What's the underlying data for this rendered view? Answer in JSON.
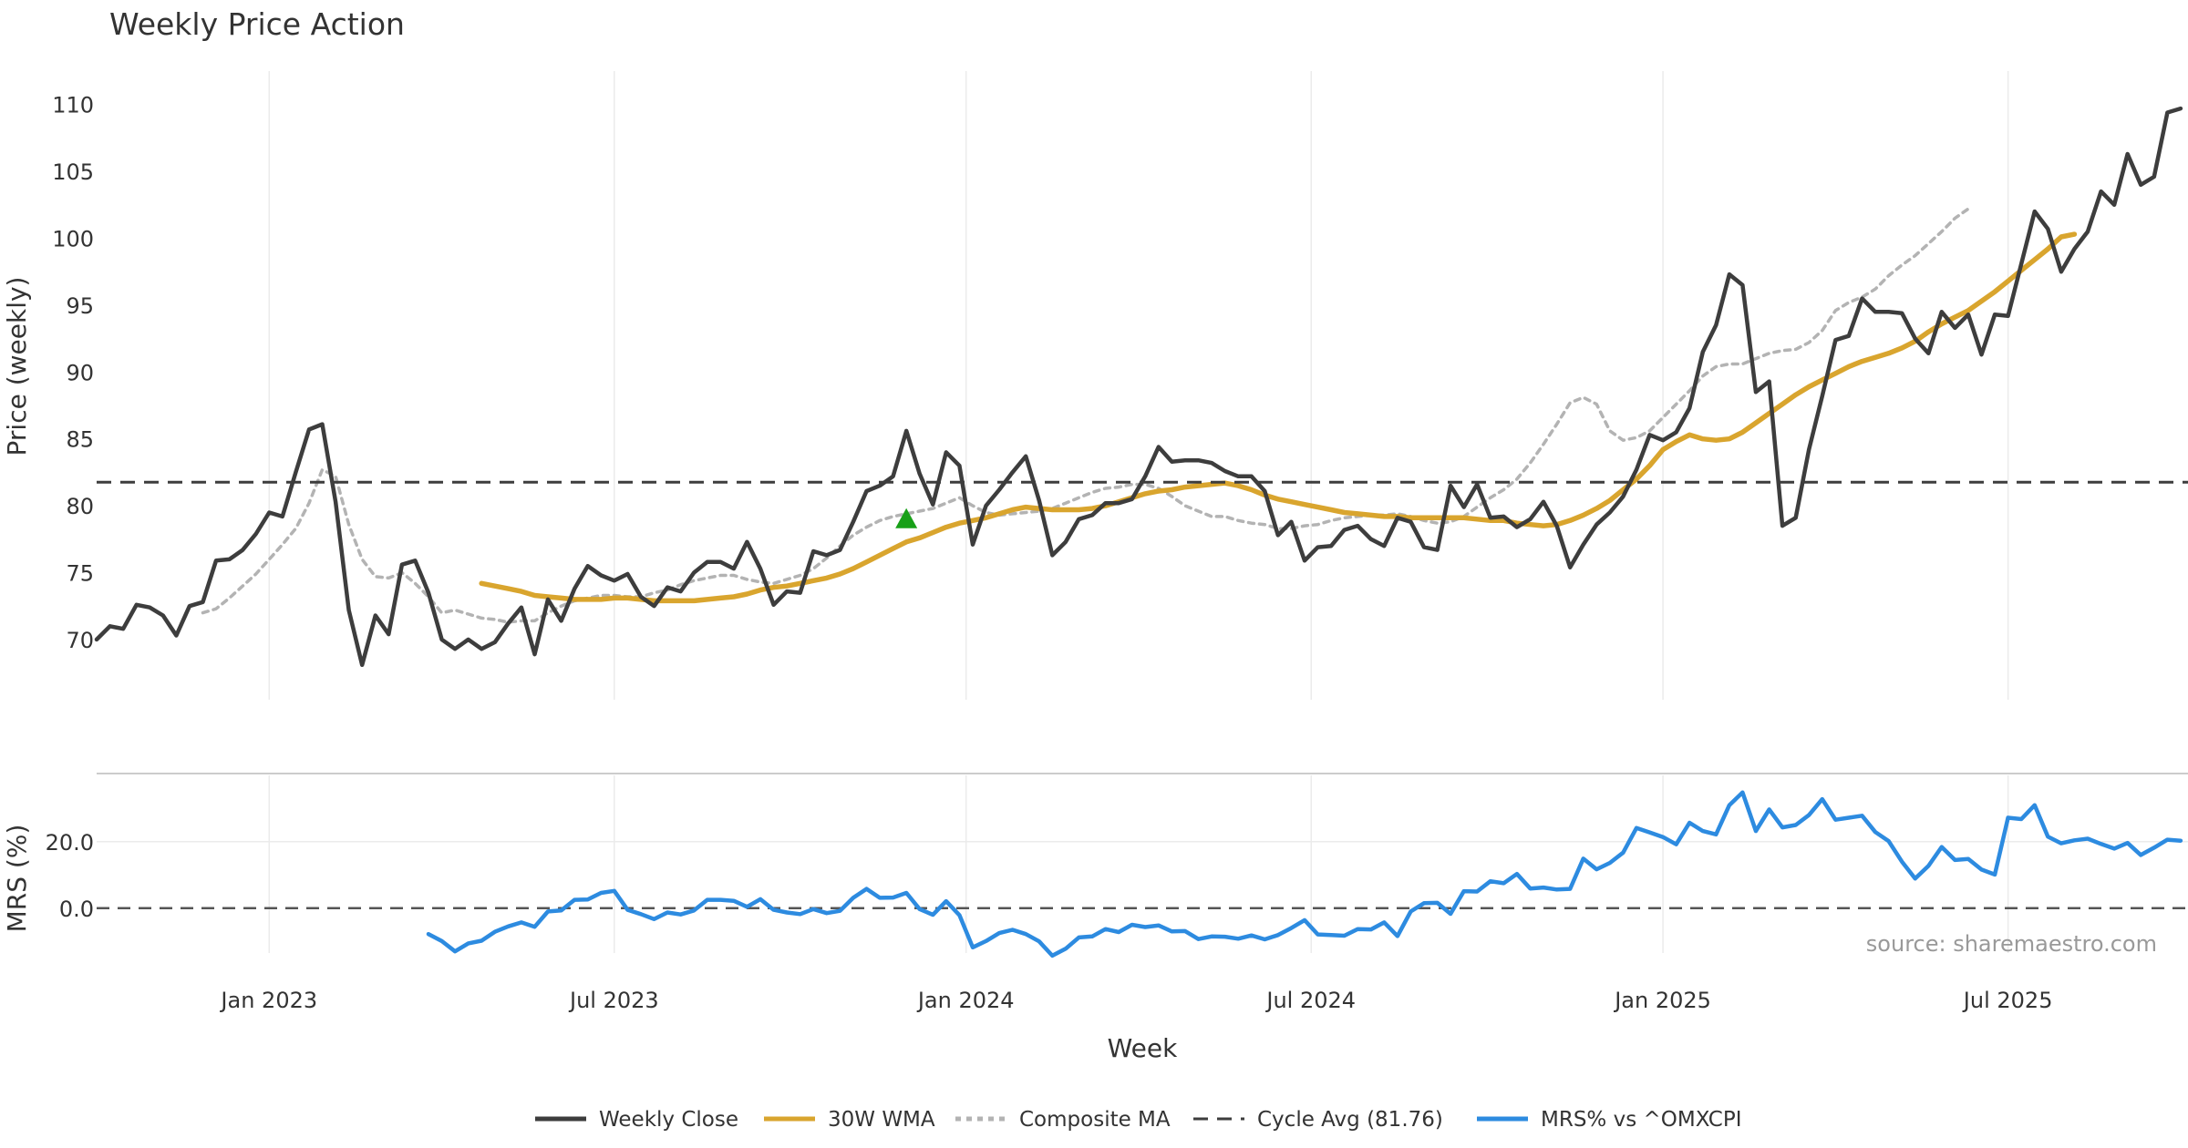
{
  "chart_data": {
    "type": "line",
    "title": "Weekly Price Action",
    "xlabel": "Week",
    "source": "source: sharemaestro.com",
    "x_ticks": [
      "Jan 2023",
      "Jul 2023",
      "Jan 2024",
      "Jul 2024",
      "Jan 2025",
      "Jul 2025"
    ],
    "x_tick_weeks": [
      13,
      39,
      65.5,
      91.5,
      118,
      144
    ],
    "price_panel": {
      "ylabel": "Price (weekly)",
      "ylim": [
        65.5,
        112.5
      ],
      "y_ticks": [
        "70",
        "75",
        "80",
        "85",
        "90",
        "95",
        "100",
        "105",
        "110"
      ],
      "cycle_avg": 81.76,
      "buy_signal": {
        "week": 61,
        "value": 79
      },
      "series": [
        {
          "name": "Weekly Close",
          "color": "#3d3d3d",
          "start_week": 0,
          "values": [
            70.0,
            71.0,
            70.8,
            72.6,
            72.4,
            71.8,
            70.3,
            72.5,
            72.8,
            75.9,
            76.0,
            76.7,
            77.9,
            79.5,
            79.2,
            82.5,
            85.7,
            86.1,
            80.3,
            72.2,
            68.1,
            71.8,
            70.4,
            75.6,
            75.9,
            73.5,
            70.0,
            69.3,
            70.0,
            69.3,
            69.8,
            71.2,
            72.4,
            68.9,
            73.0,
            71.4,
            73.8,
            75.5,
            74.8,
            74.4,
            74.9,
            73.2,
            72.5,
            73.9,
            73.6,
            75.0,
            75.8,
            75.8,
            75.3,
            77.3,
            75.3,
            72.6,
            73.6,
            73.5,
            76.6,
            76.3,
            76.7,
            78.8,
            81.1,
            81.5,
            82.2,
            85.6,
            82.4,
            80.1,
            84.0,
            83.0,
            77.1,
            80.0,
            81.2,
            82.5,
            83.7,
            80.4,
            76.3,
            77.3,
            79.0,
            79.3,
            80.2,
            80.2,
            80.5,
            82.2,
            84.4,
            83.3,
            83.4,
            83.4,
            83.2,
            82.6,
            82.2,
            82.2,
            81.1,
            77.8,
            78.8,
            75.9,
            76.9,
            77.0,
            78.2,
            78.5,
            77.5,
            77.0,
            79.1,
            78.8,
            76.9,
            76.7,
            81.5,
            79.9,
            81.6,
            79.1,
            79.2,
            78.4,
            79.0,
            80.3,
            78.5,
            75.4,
            77.1,
            78.6,
            79.5,
            80.7,
            82.7,
            85.3,
            84.9,
            85.5,
            87.3,
            91.5,
            93.5,
            97.3,
            96.5,
            88.5,
            89.3,
            78.5,
            79.1,
            84.2,
            88.2,
            92.4,
            92.7,
            95.5,
            94.5,
            94.5,
            94.4,
            92.5,
            91.4,
            94.5,
            93.3,
            94.3,
            91.3,
            94.3,
            94.2,
            98.1,
            102.0,
            100.7,
            97.5,
            99.2,
            100.5,
            103.5,
            102.5,
            106.3,
            104.0,
            104.6,
            109.4,
            109.7
          ]
        },
        {
          "name": "30W WMA",
          "color": "#d9a52e",
          "start_week": 29,
          "values": [
            74.2,
            74.0,
            73.8,
            73.6,
            73.3,
            73.2,
            73.1,
            73.0,
            73.0,
            73.0,
            73.1,
            73.1,
            73.0,
            72.9,
            72.9,
            72.9,
            72.9,
            73.0,
            73.1,
            73.2,
            73.4,
            73.7,
            73.9,
            74.0,
            74.2,
            74.4,
            74.6,
            74.9,
            75.3,
            75.8,
            76.3,
            76.8,
            77.3,
            77.6,
            78.0,
            78.4,
            78.7,
            78.9,
            79.1,
            79.4,
            79.7,
            79.9,
            79.8,
            79.7,
            79.7,
            79.7,
            79.8,
            80.0,
            80.3,
            80.6,
            80.9,
            81.1,
            81.2,
            81.4,
            81.5,
            81.6,
            81.7,
            81.5,
            81.2,
            80.8,
            80.5,
            80.3,
            80.1,
            79.9,
            79.7,
            79.5,
            79.4,
            79.3,
            79.2,
            79.2,
            79.1,
            79.1,
            79.1,
            79.1,
            79.1,
            79.0,
            78.9,
            78.9,
            78.7,
            78.6,
            78.5,
            78.6,
            78.9,
            79.3,
            79.8,
            80.4,
            81.2,
            82.0,
            83.0,
            84.2,
            84.8,
            85.3,
            85.0,
            84.9,
            85.0,
            85.5,
            86.2,
            86.9,
            87.6,
            88.3,
            88.9,
            89.4,
            89.9,
            90.4,
            90.8,
            91.1,
            91.4,
            91.8,
            92.3,
            93.0,
            93.6,
            94.1,
            94.6,
            95.3,
            96.0,
            96.8,
            97.6,
            98.4,
            99.2,
            100.1,
            100.3
          ]
        },
        {
          "name": "Composite MA",
          "color": "#b3b3b3",
          "start_week": 8,
          "values": [
            72.0,
            72.3,
            73.1,
            74.0,
            74.9,
            76.0,
            77.1,
            78.3,
            80.2,
            82.7,
            82.2,
            78.6,
            76.0,
            74.7,
            74.6,
            75.0,
            74.2,
            73.2,
            72.0,
            72.2,
            71.9,
            71.6,
            71.5,
            71.3,
            71.4,
            71.4,
            72.0,
            72.5,
            72.9,
            73.1,
            73.3,
            73.3,
            73.2,
            73.2,
            73.5,
            73.7,
            74.1,
            74.4,
            74.6,
            74.8,
            74.8,
            74.5,
            74.3,
            74.2,
            74.5,
            74.8,
            75.3,
            76.1,
            77.0,
            77.8,
            78.4,
            78.9,
            79.2,
            79.4,
            79.6,
            79.8,
            80.2,
            80.6,
            80.0,
            79.5,
            79.3,
            79.4,
            79.5,
            79.6,
            79.8,
            80.2,
            80.6,
            81.0,
            81.3,
            81.4,
            81.6,
            81.6,
            81.3,
            80.7,
            80.0,
            79.6,
            79.2,
            79.2,
            78.9,
            78.7,
            78.6,
            78.3,
            78.3,
            78.5,
            78.6,
            78.9,
            79.1,
            79.2,
            79.3,
            79.3,
            79.4,
            79.2,
            78.9,
            78.7,
            78.8,
            79.2,
            79.9,
            80.6,
            81.2,
            82.0,
            83.2,
            84.6,
            86.1,
            87.7,
            88.1,
            87.6,
            85.6,
            84.9,
            85.1,
            85.6,
            86.6,
            87.6,
            88.6,
            89.7,
            90.4,
            90.6,
            90.6,
            91.0,
            91.4,
            91.6,
            91.7,
            92.2,
            93.1,
            94.6,
            95.2,
            95.6,
            96.2,
            97.2,
            98.0,
            98.7,
            99.6,
            100.5,
            101.5,
            102.2
          ]
        },
        {
          "name": "Cycle Avg (81.76)",
          "color": "#3d3d3d",
          "style": "dashed",
          "values": [
            81.76
          ]
        }
      ]
    },
    "mrs_panel": {
      "ylabel": "MRS (%)",
      "ylim": [
        -13.5,
        40.5
      ],
      "y_ticks": [
        "0.0",
        "20.0"
      ],
      "zero_line": 0,
      "series": [
        {
          "name": "MRS% vs ^OMXCPI",
          "color": "#2d8be0",
          "start_week": 25,
          "values": [
            -7.8,
            -9.9,
            -13.0,
            -10.6,
            -9.8,
            -7.1,
            -5.5,
            -4.3,
            -5.6,
            -1.0,
            -0.7,
            2.5,
            2.6,
            4.6,
            5.2,
            -0.5,
            -1.8,
            -3.3,
            -1.3,
            -1.9,
            -0.7,
            2.5,
            2.5,
            2.2,
            0.4,
            2.7,
            -0.5,
            -1.3,
            -1.8,
            -0.3,
            -1.5,
            -0.8,
            3.1,
            5.8,
            3.1,
            3.2,
            4.6,
            -0.3,
            -2.0,
            2.1,
            -2.1,
            -11.8,
            -9.9,
            -7.5,
            -6.5,
            -7.8,
            -10.0,
            -14.3,
            -12.2,
            -8.8,
            -8.5,
            -6.3,
            -7.2,
            -5.0,
            -5.7,
            -5.2,
            -7.0,
            -6.9,
            -9.3,
            -8.5,
            -8.6,
            -9.2,
            -8.2,
            -9.4,
            -8.1,
            -6.0,
            -3.6,
            -7.9,
            -8.1,
            -8.3,
            -6.3,
            -6.4,
            -4.3,
            -8.4,
            -1.0,
            1.5,
            1.6,
            -1.7,
            5.1,
            5.0,
            8.1,
            7.5,
            10.3,
            5.9,
            6.2,
            5.6,
            5.8,
            14.9,
            11.7,
            13.6,
            16.7,
            24.1,
            22.8,
            21.4,
            19.2,
            25.7,
            23.2,
            22.2,
            31.0,
            34.8,
            23.2,
            29.7,
            24.3,
            25.0,
            28.0,
            32.8,
            26.6,
            27.2,
            27.8,
            22.9,
            20.2,
            14.0,
            8.9,
            12.7,
            18.4,
            14.5,
            14.8,
            11.6,
            10.1,
            27.2,
            26.8,
            31.0,
            21.5,
            19.5,
            20.4,
            20.9,
            19.3,
            17.9,
            19.6,
            16.0,
            18.2,
            20.6,
            20.3
          ]
        }
      ]
    },
    "legend": [
      "Weekly Close",
      "30W WMA",
      "Composite MA",
      "Cycle Avg (81.76)",
      "MRS% vs ^OMXCPI"
    ]
  }
}
